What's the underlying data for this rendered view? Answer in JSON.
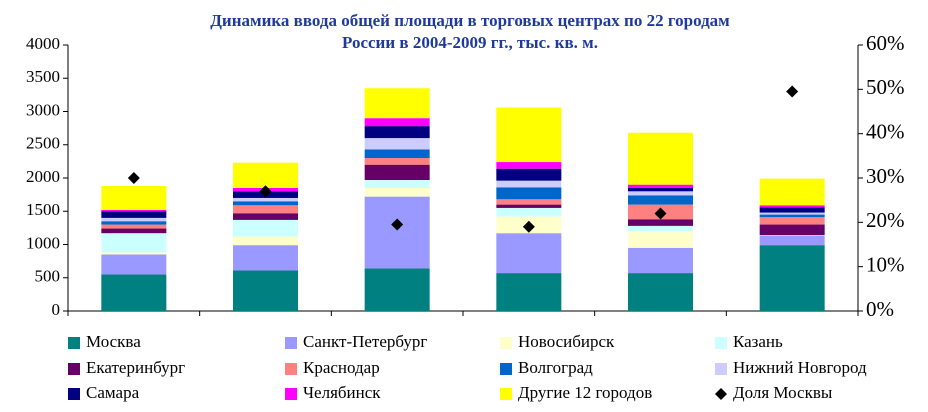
{
  "chart_data": {
    "type": "bar",
    "stacked": true,
    "title": [
      "Динамика ввода общей площади в торговых центрах по 22 городам",
      "России в 2004-2009 гг., тыс. кв. м."
    ],
    "categories": [
      null,
      null,
      null,
      null,
      null,
      null
    ],
    "ylim": [
      0,
      4000
    ],
    "yticks": [
      0,
      500,
      1000,
      1500,
      2000,
      2500,
      3000,
      3500,
      4000
    ],
    "y2lim": [
      0,
      60
    ],
    "y2ticks": [
      {
        "value": 0,
        "label": "0%"
      },
      {
        "value": 10,
        "label": "10%"
      },
      {
        "value": 20,
        "label": "20%"
      },
      {
        "value": 30,
        "label": "30%"
      },
      {
        "value": 40,
        "label": "40%"
      },
      {
        "value": 50,
        "label": "50%"
      },
      {
        "value": 60,
        "label": "60%"
      }
    ],
    "grid": false,
    "legend": "bottom",
    "series": [
      {
        "name": "Москва",
        "color": "#008080",
        "values": [
          550,
          610,
          640,
          570,
          570,
          990
        ]
      },
      {
        "name": "Санкт-Петербург",
        "color": "#9999ff",
        "values": [
          300,
          380,
          1080,
          600,
          380,
          140
        ]
      },
      {
        "name": "Новосибирск",
        "color": "#ffffcc",
        "values": [
          30,
          130,
          130,
          250,
          250,
          0
        ]
      },
      {
        "name": "Казань",
        "color": "#ccffff",
        "values": [
          290,
          250,
          120,
          130,
          80,
          10
        ]
      },
      {
        "name": "Екатеринбург",
        "color": "#660066",
        "values": [
          70,
          100,
          230,
          50,
          100,
          160
        ]
      },
      {
        "name": "Краснодар",
        "color": "#ff8080",
        "values": [
          60,
          120,
          100,
          80,
          220,
          110
        ]
      },
      {
        "name": "Волгоград",
        "color": "#0066cc",
        "values": [
          50,
          60,
          130,
          180,
          140,
          40
        ]
      },
      {
        "name": "Нижний Новгород",
        "color": "#ccccff",
        "values": [
          50,
          50,
          170,
          100,
          60,
          30
        ]
      },
      {
        "name": "Самара",
        "color": "#000080",
        "values": [
          100,
          100,
          180,
          180,
          50,
          80
        ]
      },
      {
        "name": "Челябинск",
        "color": "#ff00ff",
        "values": [
          20,
          50,
          120,
          100,
          50,
          30
        ]
      },
      {
        "name": "Другие 12 городов",
        "color": "#ffff00",
        "values": [
          360,
          380,
          450,
          820,
          780,
          400
        ]
      },
      {
        "name": "Доля Москвы",
        "color": "#000000",
        "type": "scatter",
        "marker": "diamond",
        "axis": "y2",
        "values": [
          30,
          27,
          19.5,
          19,
          22,
          49.5
        ]
      }
    ]
  }
}
